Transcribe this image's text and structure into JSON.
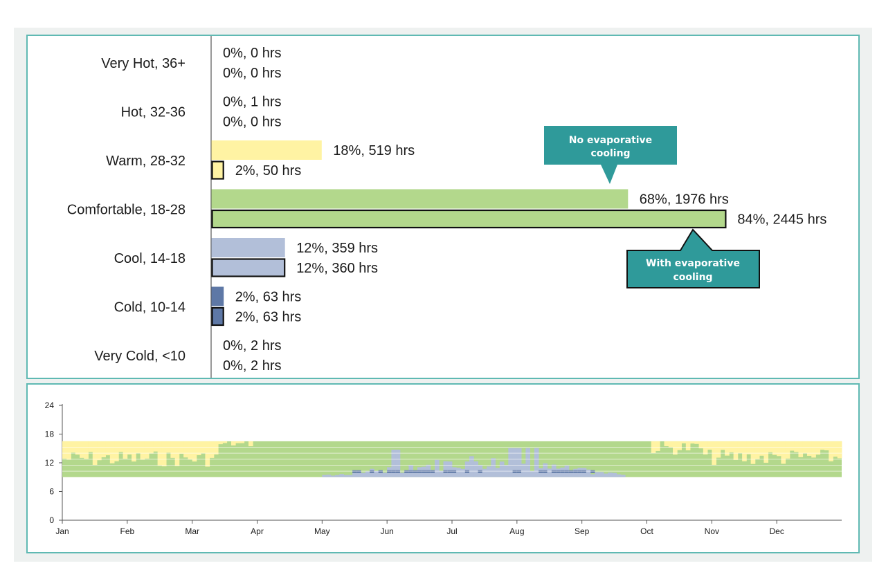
{
  "colors": {
    "hot": "#f3cf3a",
    "warm": "#fff3a3",
    "comfortable": "#b3d88c",
    "cool": "#b2bfd9",
    "cold": "#5e78a6",
    "callout": "#2f9a9a",
    "axis": "#555555"
  },
  "chart_data": [
    {
      "type": "bar",
      "orientation": "horizontal",
      "categories": [
        "Very Hot, 36+",
        "Hot, 32-36",
        "Warm, 28-32",
        "Comfortable, 18-28",
        "Cool, 14-18",
        "Cold, 10-14",
        "Very Cold, <10"
      ],
      "bar_colors": [
        "hot",
        "hot",
        "warm",
        "comfortable",
        "cool",
        "cold",
        "cold"
      ],
      "series": [
        {
          "name": "No evaporative cooling",
          "outlined": false,
          "percent": [
            0,
            0,
            18,
            68,
            12,
            2,
            0
          ],
          "hours": [
            0,
            1,
            519,
            1976,
            359,
            63,
            2
          ],
          "labels": [
            "0%, 0 hrs",
            "0%, 1 hrs",
            "18%, 519 hrs",
            "68%, 1976 hrs",
            "12%, 359 hrs",
            "2%, 63 hrs",
            "0%, 2 hrs"
          ]
        },
        {
          "name": "With evaporative cooling",
          "outlined": true,
          "percent": [
            0,
            0,
            2,
            84,
            12,
            2,
            0
          ],
          "hours": [
            0,
            0,
            50,
            2445,
            360,
            63,
            2
          ],
          "labels": [
            "0%, 0 hrs",
            "0%, 0 hrs",
            "2%, 50 hrs",
            "84%, 2445 hrs",
            "12%, 360 hrs",
            "2%, 63 hrs",
            "0%, 2 hrs"
          ]
        }
      ],
      "annotations": [
        {
          "text_lines": [
            "No evaporative",
            "cooling"
          ],
          "points_to": "No evaporative cooling"
        },
        {
          "text_lines": [
            "With evaporative",
            "cooling"
          ],
          "points_to": "With evaporative cooling"
        }
      ]
    },
    {
      "type": "heatmap",
      "x_ticks": [
        "Jan",
        "Feb",
        "Mar",
        "Apr",
        "May",
        "Jun",
        "Jul",
        "Aug",
        "Sep",
        "Oct",
        "Nov",
        "Dec"
      ],
      "y_ticks": [
        "0",
        "6",
        "12",
        "18",
        "24"
      ],
      "ylim": [
        0,
        24
      ],
      "band_hours": [
        9,
        16.5
      ],
      "legend": "none"
    }
  ]
}
